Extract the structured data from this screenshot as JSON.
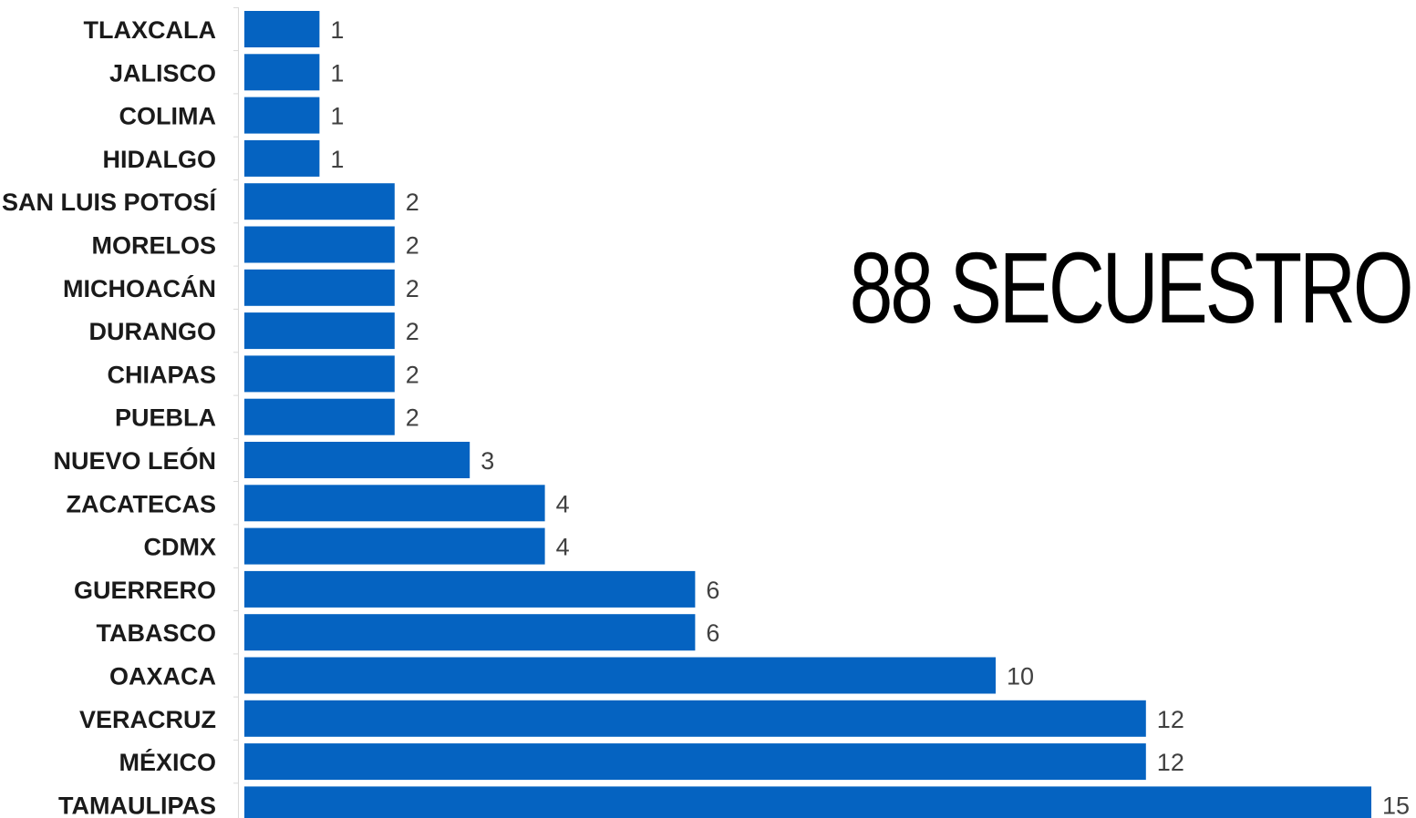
{
  "title": "88 SECUESTRO",
  "chart_data": {
    "type": "bar",
    "orientation": "horizontal",
    "categories": [
      "TLAXCALA",
      "JALISCO",
      "COLIMA",
      "HIDALGO",
      "SAN LUIS POTOSÍ",
      "MORELOS",
      "MICHOACÁN",
      "DURANGO",
      "CHIAPAS",
      "PUEBLA",
      "NUEVO LEÓN",
      "ZACATECAS",
      "CDMX",
      "GUERRERO",
      "TABASCO",
      "OAXACA",
      "VERACRUZ",
      "MÉXICO",
      "TAMAULIPAS"
    ],
    "values": [
      1,
      1,
      1,
      1,
      2,
      2,
      2,
      2,
      2,
      2,
      3,
      4,
      4,
      6,
      6,
      10,
      12,
      12,
      15
    ],
    "title": "88 SECUESTRO",
    "xlabel": "",
    "ylabel": "",
    "xlim": [
      0,
      15
    ],
    "grid": false,
    "legend": "none",
    "data_labels": true,
    "bar_color": "#0563C1"
  }
}
